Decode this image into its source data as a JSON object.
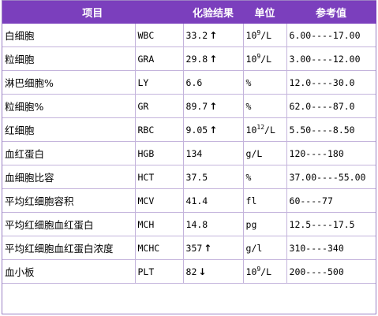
{
  "headers": {
    "item": "项目",
    "result": "化验结果",
    "unit": "单位",
    "reference": "参考值"
  },
  "rows": [
    {
      "name": "白细胞",
      "code": "WBC",
      "value": "33.2",
      "flag": "up",
      "unit_base": "10",
      "unit_exp": "9",
      "unit_rest": "/L",
      "reference": "6.00----17.00"
    },
    {
      "name": "粒细胞",
      "code": "GRA",
      "value": "29.8",
      "flag": "up",
      "unit_base": "10",
      "unit_exp": "9",
      "unit_rest": "/L",
      "reference": "3.00----12.00"
    },
    {
      "name": "淋巴细胞%",
      "code": "LY",
      "value": "6.6",
      "flag": "",
      "unit_base": "%",
      "unit_exp": "",
      "unit_rest": "",
      "reference": "12.0----30.0"
    },
    {
      "name": "粒细胞%",
      "code": "GR",
      "value": "89.7",
      "flag": "up",
      "unit_base": "%",
      "unit_exp": "",
      "unit_rest": "",
      "reference": "62.0----87.0"
    },
    {
      "name": "红细胞",
      "code": "RBC",
      "value": "9.05",
      "flag": "up",
      "unit_base": "10",
      "unit_exp": "12",
      "unit_rest": "/L",
      "reference": "5.50----8.50"
    },
    {
      "name": "血红蛋白",
      "code": "HGB",
      "value": "134",
      "flag": "",
      "unit_base": "g/L",
      "unit_exp": "",
      "unit_rest": "",
      "reference": "120----180"
    },
    {
      "name": "血细胞比容",
      "code": "HCT",
      "value": "37.5",
      "flag": "",
      "unit_base": "%",
      "unit_exp": "",
      "unit_rest": "",
      "reference": "37.00----55.00"
    },
    {
      "name": "平均红细胞容积",
      "code": "MCV",
      "value": "41.4",
      "flag": "",
      "unit_base": "fl",
      "unit_exp": "",
      "unit_rest": "",
      "reference": "60----77"
    },
    {
      "name": "平均红细胞血红蛋白",
      "code": "MCH",
      "value": "14.8",
      "flag": "",
      "unit_base": "pg",
      "unit_exp": "",
      "unit_rest": "",
      "reference": "12.5----17.5"
    },
    {
      "name": "平均红细胞血红蛋白浓度",
      "code": "MCHC",
      "value": "357",
      "flag": "up",
      "unit_base": "g/l",
      "unit_exp": "",
      "unit_rest": "",
      "reference": "310----340"
    },
    {
      "name": "血小板",
      "code": "PLT",
      "value": "82",
      "flag": "down",
      "unit_base": "10",
      "unit_exp": "9",
      "unit_rest": "/L",
      "reference": "200----500"
    }
  ],
  "icons": {
    "up": "arrow-up-icon",
    "down": "arrow-down-icon"
  }
}
